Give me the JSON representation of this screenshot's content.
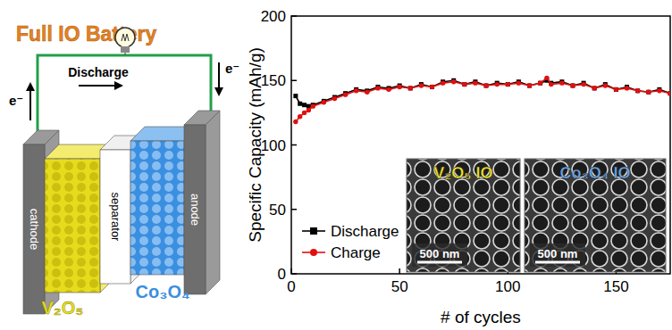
{
  "diagram": {
    "title": "Full IO Battery",
    "arrow_label": "Discharge",
    "electron_labels": [
      "e⁻",
      "e⁻"
    ],
    "components": [
      "cathode",
      "separator",
      "anode"
    ],
    "materials": [
      {
        "label": "V₂O₅",
        "color": "#e6dc1e"
      },
      {
        "label": "Co₃O₄",
        "color": "#3a8fe0"
      }
    ]
  },
  "chart_data": {
    "type": "line",
    "xlabel": "# of cycles",
    "ylabel": "Specific Capacity (mAh/g)",
    "x": [
      2,
      4,
      6,
      8,
      10,
      15,
      20,
      25,
      30,
      35,
      40,
      45,
      50,
      55,
      60,
      65,
      70,
      75,
      80,
      85,
      90,
      95,
      100,
      105,
      110,
      115,
      118,
      120,
      125,
      130,
      135,
      140,
      145,
      150,
      155,
      160,
      165,
      170,
      175
    ],
    "series": [
      {
        "name": "Discharge",
        "color": "#000000",
        "marker": "square",
        "values": [
          138,
          132,
          131,
          130,
          131,
          134,
          137,
          140,
          143,
          142,
          145,
          144,
          146,
          144,
          147,
          145,
          149,
          150,
          147,
          149,
          146,
          148,
          147,
          149,
          146,
          148,
          150,
          148,
          149,
          146,
          148,
          144,
          147,
          143,
          145,
          142,
          141,
          143,
          140
        ]
      },
      {
        "name": "Charge",
        "color": "#e01010",
        "marker": "circle",
        "values": [
          118,
          122,
          125,
          127,
          130,
          133,
          136,
          139,
          142,
          141,
          144,
          143,
          145,
          144,
          146,
          145,
          148,
          149,
          147,
          148,
          146,
          147,
          147,
          148,
          146,
          148,
          152,
          147,
          148,
          146,
          147,
          144,
          146,
          143,
          144,
          142,
          141,
          142,
          140
        ]
      }
    ],
    "xlim": [
      0,
      175
    ],
    "xticks": [
      0,
      50,
      100,
      150
    ],
    "ylim": [
      0,
      200
    ],
    "yticks": [
      0,
      50,
      100,
      150,
      200
    ],
    "legend": "lower left",
    "insets": [
      {
        "label": "V₂O₅ IO",
        "scale_bar": "500 nm",
        "color": "#f2e62a"
      },
      {
        "label": "Co₃O₄ IO",
        "scale_bar": "500 nm",
        "color": "#6aa8e8"
      }
    ]
  }
}
